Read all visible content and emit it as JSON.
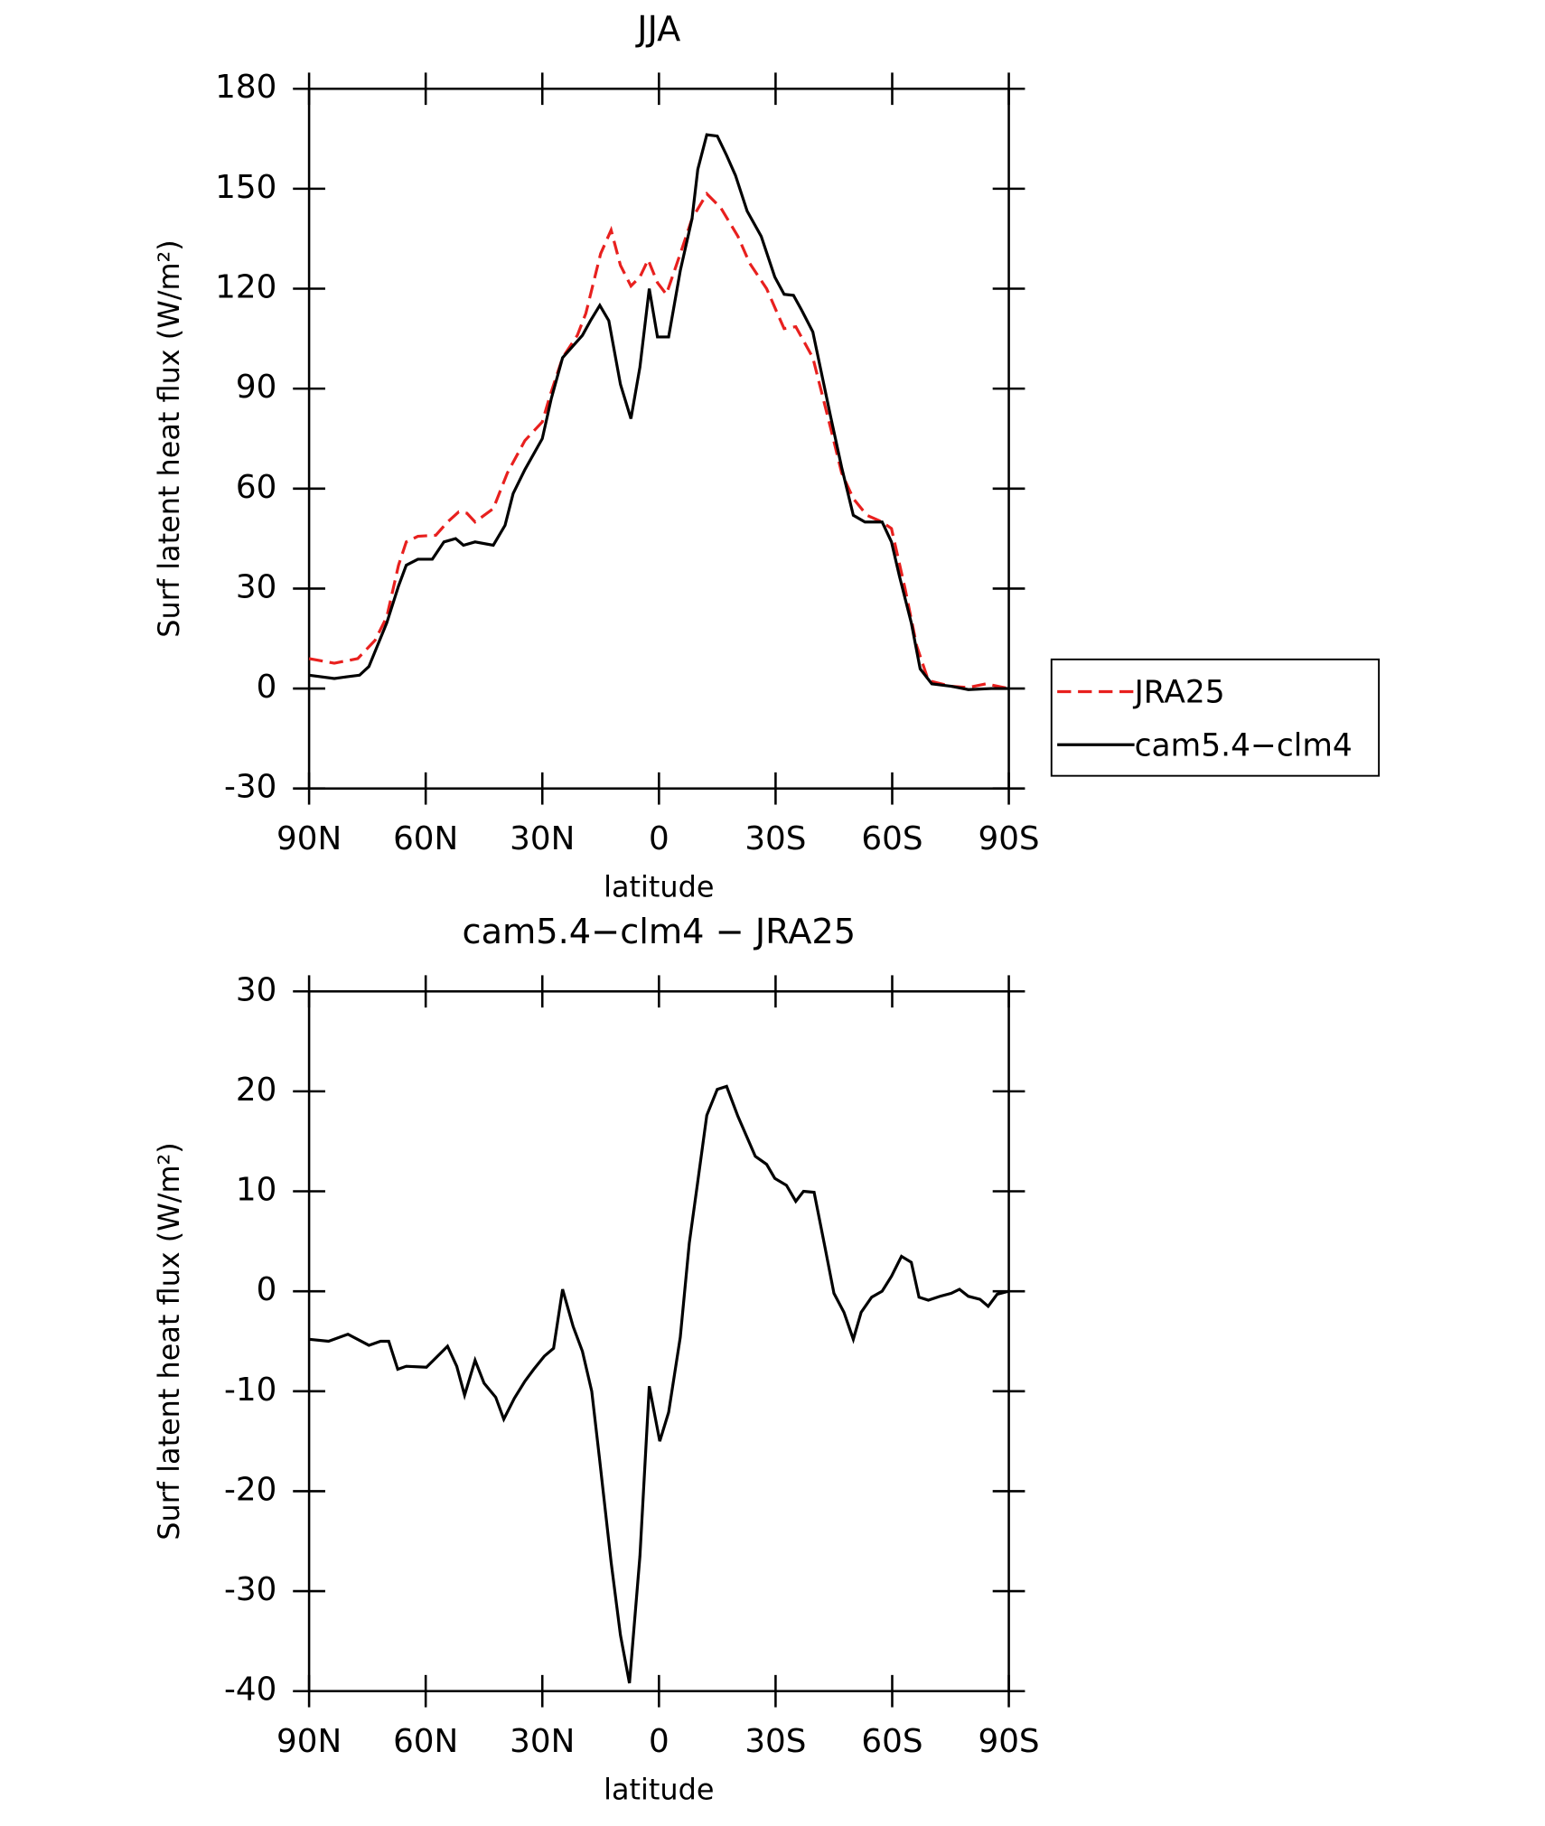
{
  "chart_data": [
    {
      "type": "line",
      "title": "JJA",
      "xlabel": "latitude",
      "ylabel": "Surf latent heat flux (W/m²)",
      "xlim": [
        90,
        -90
      ],
      "xticks": [
        {
          "value": 90,
          "label": "90N"
        },
        {
          "value": 60,
          "label": "60N"
        },
        {
          "value": 30,
          "label": "30N"
        },
        0,
        {
          "value": -30,
          "label": "30S"
        },
        {
          "value": -60,
          "label": "60S"
        },
        {
          "value": -90,
          "label": "90S"
        }
      ],
      "ylim": [
        -30,
        180
      ],
      "yticks": [
        -30,
        0,
        30,
        60,
        90,
        120,
        150,
        180
      ],
      "legend": "right",
      "series": [
        {
          "name": "JRA25",
          "color": "#e8201e",
          "dash": true,
          "x": [
            90,
            83.5,
            77.5,
            73,
            70,
            67,
            65,
            62,
            57.4,
            54.4,
            51.5,
            49.4,
            47.3,
            42.6,
            39,
            34.5,
            30,
            28,
            24.8,
            21,
            18.8,
            15,
            12.3,
            9.9,
            7.2,
            4.9,
            2.8,
            0.4,
            -1.9,
            -5.5,
            -8.5,
            -12.3,
            -15.9,
            -20.3,
            -23.3,
            -27.7,
            -30.7,
            -32.2,
            -35.2,
            -39.6,
            -44.1,
            -47,
            -50,
            -53.5,
            -57.4,
            -59.8,
            -63.3,
            -66.3,
            -69.3,
            -71.6,
            -75.2,
            -79.6,
            -84.1,
            -90
          ],
          "values": [
            9,
            7.6,
            9,
            14.5,
            21.5,
            37,
            44,
            45.7,
            46,
            50,
            53,
            52.6,
            50,
            54,
            64.7,
            74.4,
            80,
            88,
            99.3,
            106,
            112.6,
            130.5,
            137.6,
            127,
            120.8,
            123.5,
            128.7,
            121.8,
            118.3,
            130.5,
            141,
            148.5,
            144.3,
            135.7,
            127.7,
            120,
            112,
            108,
            108.6,
            99.3,
            78.5,
            64.7,
            57,
            52,
            50,
            48,
            30,
            12.8,
            2.4,
            1.7,
            0.7,
            0.3,
            1.4,
            0
          ]
        },
        {
          "name": "cam5.4−clm4",
          "color": "#000000",
          "dash": false,
          "x": [
            90,
            83.5,
            80.5,
            77,
            74.6,
            70,
            67,
            65,
            62,
            58.3,
            55.3,
            52.3,
            50.3,
            47.3,
            42.6,
            39.6,
            37.5,
            34.5,
            30,
            27.7,
            24.8,
            19.7,
            17.6,
            15.2,
            12.9,
            9.9,
            7.2,
            4.9,
            2.5,
            0.4,
            -2.5,
            -5.5,
            -8.5,
            -10,
            -12.3,
            -15,
            -17.4,
            -19.7,
            -22.7,
            -26.3,
            -29.8,
            -32.2,
            -34.6,
            -36.6,
            -39.6,
            -44.1,
            -47,
            -50,
            -53,
            -57.4,
            -59.8,
            -61.9,
            -64.9,
            -67.2,
            -70.2,
            -75.2,
            -79.6,
            -85.5,
            -90
          ],
          "values": [
            4,
            3,
            3.5,
            4,
            6.6,
            19.7,
            30.8,
            37,
            38.8,
            38.8,
            44,
            45,
            43,
            44,
            43,
            49,
            58.5,
            65.7,
            75,
            87,
            99.3,
            106,
            110.4,
            115,
            110.4,
            91.3,
            81,
            96.5,
            120,
            105.5,
            105.5,
            125.4,
            141,
            155.8,
            166.2,
            165.8,
            160,
            154,
            143.3,
            135.7,
            123.5,
            118.3,
            118,
            113.8,
            107,
            82,
            66.4,
            52,
            50,
            50,
            44,
            33.6,
            19.7,
            5.9,
            1.4,
            0.7,
            -0.3,
            0,
            0
          ]
        }
      ]
    },
    {
      "type": "line",
      "title": "cam5.4−clm4 − JRA25",
      "xlabel": "latitude",
      "ylabel": "Surf latent heat flux (W/m²)",
      "xlim": [
        90,
        -90
      ],
      "xticks": [
        {
          "value": 90,
          "label": "90N"
        },
        {
          "value": 60,
          "label": "60N"
        },
        {
          "value": 30,
          "label": "30N"
        },
        0,
        {
          "value": -30,
          "label": "30S"
        },
        {
          "value": -60,
          "label": "60S"
        },
        {
          "value": -90,
          "label": "90S"
        }
      ],
      "ylim": [
        -40,
        30
      ],
      "yticks": [
        -40,
        -30,
        -20,
        -10,
        0,
        10,
        20,
        30
      ],
      "series": [
        {
          "color": "#000000",
          "dash": false,
          "x": [
            90,
            85,
            80,
            74.6,
            71.6,
            69.5,
            67.2,
            65,
            59.8,
            54.4,
            52,
            50,
            47.3,
            45,
            42,
            39.9,
            37.2,
            34.5,
            32.2,
            29.5,
            27.1,
            24.8,
            22.1,
            19.7,
            17.3,
            15.3,
            12.3,
            9.9,
            7.6,
            4.9,
            2.5,
            -0.2,
            -2.5,
            -5.5,
            -7.8,
            -10,
            -12.3,
            -15,
            -17.4,
            -20.3,
            -24.8,
            -27.7,
            -29.8,
            -32.8,
            -35.2,
            -37.2,
            -39.9,
            -42.6,
            -45,
            -47.6,
            -50,
            -52,
            -54.7,
            -57.4,
            -59.8,
            -62.4,
            -64.9,
            -66.9,
            -69.3,
            -72.3,
            -75.2,
            -77.3,
            -79.6,
            -82.6,
            -84.7,
            -87,
            -90
          ],
          "values": [
            -4.8,
            -5,
            -4.3,
            -5.4,
            -5,
            -5,
            -7.8,
            -7.5,
            -7.6,
            -5.5,
            -7.5,
            -10.4,
            -6.9,
            -9.2,
            -10.6,
            -12.8,
            -10.7,
            -9,
            -7.8,
            -6.5,
            -5.7,
            0.2,
            -3.5,
            -6,
            -10,
            -16.7,
            -27.1,
            -34.4,
            -39.2,
            -26.5,
            -9.5,
            -15,
            -12.1,
            -4.6,
            4.8,
            11,
            17.6,
            20.2,
            20.5,
            17.5,
            13.5,
            12.7,
            11.3,
            10.6,
            9,
            10,
            9.9,
            4.6,
            -0.2,
            -2.1,
            -4.8,
            -2.1,
            -0.6,
            0,
            1.5,
            3.5,
            2.9,
            -0.6,
            -0.9,
            -0.5,
            -0.2,
            0.2,
            -0.5,
            -0.8,
            -1.5,
            -0.3,
            0
          ]
        }
      ]
    }
  ]
}
